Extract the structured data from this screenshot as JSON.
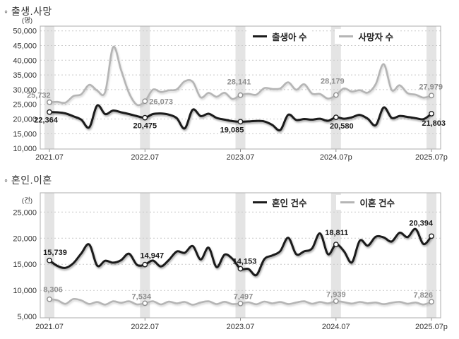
{
  "page": {
    "background": "#ffffff"
  },
  "sections": [
    {
      "heading": "◦ 출생.사망"
    },
    {
      "heading": "◦ 혼인.이혼"
    }
  ],
  "palette": {
    "series_dark": "#1b1b1b",
    "series_gray": "#b5b5b5",
    "band": "#e4e4e4",
    "grid": "#c9c9c9",
    "plot_border": "#adadad",
    "tick_mark": "#8a8a8a",
    "axis_text": "#333333",
    "label_dark": "#1a1a1a",
    "label_gray": "#8f8f8f",
    "plot_background": "#ffffff"
  },
  "chart_data": [
    {
      "type": "line",
      "title": "출생.사망",
      "unit": "(명)",
      "grid": "dotted-horizontal",
      "legend_position": "top-center-inside",
      "y_ticks": [
        10000,
        15000,
        20000,
        25000,
        30000,
        35000,
        40000,
        45000,
        50000
      ],
      "ylim": [
        10000,
        50000
      ],
      "n_points": 49,
      "x_range": [
        "2021.07",
        "2025.07p"
      ],
      "x_ticks": {
        "indices": [
          0,
          12,
          24,
          36,
          48
        ],
        "labels": [
          "2021.07",
          "2022.07",
          "2023.07",
          "2024.07p",
          "2025.07p"
        ]
      },
      "highlight_band_indices": [
        0,
        12,
        24,
        36,
        48
      ],
      "series": [
        {
          "key": "births",
          "name": "출생아 수",
          "color": "#1b1b1b",
          "width": 3,
          "label_color": "#1a1a1a",
          "values": [
            22364,
            22291,
            21920,
            20949,
            19800,
            17179,
            24598,
            21700,
            22900,
            22300,
            21700,
            21000,
            20475,
            21700,
            21900,
            21500,
            20300,
            16803,
            23179,
            21000,
            21800,
            20400,
            19800,
            19300,
            19085,
            19200,
            19350,
            19200,
            18000,
            16253,
            21442,
            19700,
            20000,
            19800,
            20100,
            19400,
            20580,
            20098,
            20590,
            21398,
            20095,
            17913,
            23947,
            20397,
            21041,
            20717,
            20309,
            19953,
            21803
          ],
          "labels": [
            {
              "i": 0,
              "dx": -5,
              "dy": 15,
              "anchor": "middle"
            },
            {
              "i": 12,
              "dx": 0,
              "dy": 15,
              "anchor": "middle"
            },
            {
              "i": 24,
              "dx": -12,
              "dy": 15,
              "anchor": "middle"
            },
            {
              "i": 36,
              "dx": 8,
              "dy": 16,
              "anchor": "middle"
            },
            {
              "i": 48,
              "dx": 20,
              "dy": 17,
              "anchor": "end"
            }
          ]
        },
        {
          "key": "deaths",
          "name": "사망자 수",
          "color": "#b5b5b5",
          "width": 2.6,
          "label_color": "#8f8f8f",
          "values": [
            25732,
            25837,
            25566,
            27783,
            28426,
            31634,
            29686,
            29189,
            44487,
            36697,
            28859,
            24850,
            26073,
            30001,
            29199,
            29763,
            30107,
            32848,
            32703,
            27390,
            28922,
            27581,
            28958,
            26820,
            28141,
            28596,
            28290,
            30520,
            30255,
            30412,
            32490,
            29977,
            31839,
            28659,
            28546,
            26942,
            28179,
            30419,
            29362,
            29819,
            28984,
            31892,
            38700,
            29900,
            31500,
            28800,
            28300,
            27300,
            27979
          ],
          "labels": [
            {
              "i": 0,
              "dx": -32,
              "dy": -6,
              "anchor": "start"
            },
            {
              "i": 12,
              "dx": 6,
              "dy": 4,
              "anchor": "start"
            },
            {
              "i": 24,
              "dx": -2,
              "dy": -15,
              "anchor": "middle"
            },
            {
              "i": 36,
              "dx": -5,
              "dy": -16,
              "anchor": "middle"
            },
            {
              "i": 48,
              "dx": 16,
              "dy": -9,
              "anchor": "end"
            }
          ]
        }
      ]
    },
    {
      "type": "line",
      "title": "혼인.이혼",
      "unit": "(건)",
      "grid": "dotted-horizontal",
      "legend_position": "top-center-inside",
      "y_ticks": [
        5000,
        10000,
        15000,
        20000,
        25000
      ],
      "ylim": [
        5000,
        25000
      ],
      "n_points": 49,
      "x_range": [
        "2021.07",
        "2025.07p"
      ],
      "x_ticks": {
        "indices": [
          0,
          12,
          24,
          36,
          48
        ],
        "labels": [
          "2021.07",
          "2022.07",
          "2023.07",
          "2024.07",
          "2025.07p"
        ]
      },
      "highlight_band_indices": [
        0,
        12,
        24,
        36,
        48
      ],
      "series": [
        {
          "key": "marriages",
          "name": "혼인 건수",
          "color": "#1b1b1b",
          "width": 3,
          "label_color": "#1a1a1a",
          "values": [
            15739,
            14700,
            14319,
            15203,
            17088,
            18800,
            14753,
            15681,
            15316,
            15795,
            17041,
            14898,
            14947,
            15718,
            14594,
            15832,
            17458,
            17211,
            18500,
            15933,
            18192,
            14475,
            16845,
            16053,
            14153,
            14110,
            12941,
            15986,
            16695,
            17531,
            20097,
            16949,
            17484,
            18039,
            20923,
            16948,
            18811,
            17527,
            15368,
            19551,
            18581,
            20277,
            20153,
            19370,
            21062,
            20217,
            21761,
            18894,
            20394
          ],
          "labels": [
            {
              "i": 0,
              "dx": 8,
              "dy": -8,
              "anchor": "middle"
            },
            {
              "i": 12,
              "dx": 10,
              "dy": -9,
              "anchor": "middle"
            },
            {
              "i": 24,
              "dx": 6,
              "dy": -7,
              "anchor": "middle"
            },
            {
              "i": 36,
              "dx": 1,
              "dy": -13,
              "anchor": "middle"
            },
            {
              "i": 48,
              "dx": 2,
              "dy": -15,
              "anchor": "end"
            }
          ]
        },
        {
          "key": "divorces",
          "name": "이혼 건수",
          "color": "#b5b5b5",
          "width": 2.6,
          "label_color": "#8f8f8f",
          "values": [
            8306,
            8121,
            7434,
            8349,
            8088,
            7411,
            7787,
            7278,
            7911,
            7628,
            7921,
            7326,
            7534,
            7926,
            7319,
            7845,
            7519,
            7788,
            7251,
            7680,
            7922,
            7386,
            7819,
            7391,
            7497,
            7723,
            7354,
            7862,
            7528,
            7786,
            7397,
            7681,
            7912,
            7455,
            7792,
            7508,
            7939,
            7751,
            7483,
            7792,
            7541,
            7689,
            7371,
            7636,
            7811,
            7462,
            7688,
            7297,
            7826
          ],
          "labels": [
            {
              "i": 0,
              "dx": 5,
              "dy": -10,
              "anchor": "middle"
            },
            {
              "i": 12,
              "dx": -5,
              "dy": -6,
              "anchor": "middle"
            },
            {
              "i": 24,
              "dx": 4,
              "dy": -6,
              "anchor": "middle"
            },
            {
              "i": 36,
              "dx": 0,
              "dy": -6,
              "anchor": "middle"
            },
            {
              "i": 48,
              "dx": 2,
              "dy": -6,
              "anchor": "end"
            }
          ]
        }
      ]
    }
  ]
}
